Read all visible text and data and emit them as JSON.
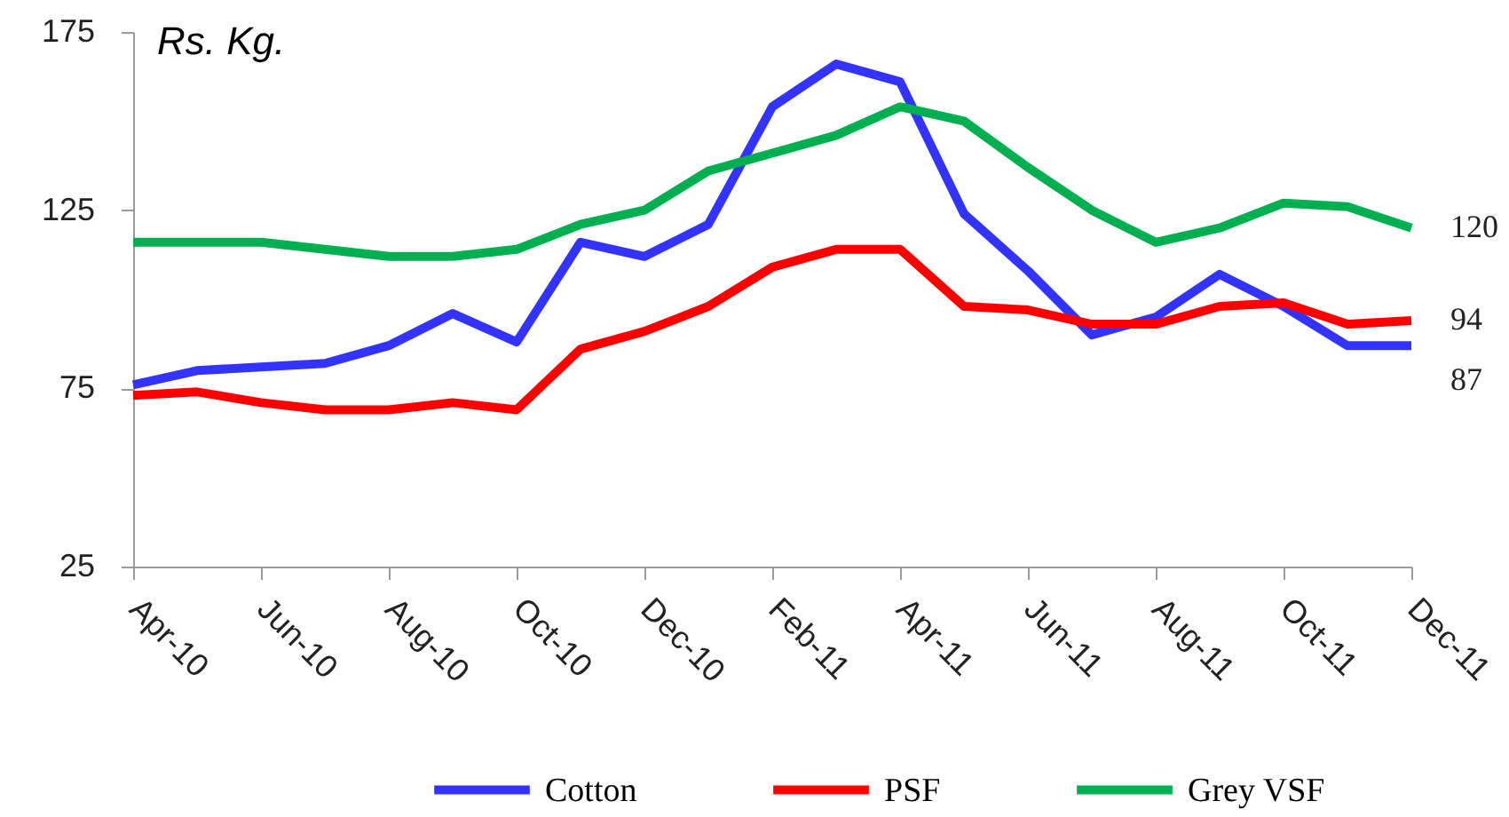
{
  "chart_data": {
    "type": "line",
    "ylabel": "Rs. Kg.",
    "categories": [
      "Apr-10",
      null,
      "Jun-10",
      null,
      "Aug-10",
      null,
      "Oct-10",
      null,
      "Dec-10",
      null,
      "Feb-11",
      null,
      "Apr-11",
      null,
      "Jun-11",
      null,
      "Aug-11",
      null,
      "Oct-11",
      null,
      "Dec-11"
    ],
    "series": [
      {
        "name": "Cotton",
        "color": "#3333ff",
        "values": [
          76,
          80,
          81,
          82,
          87,
          96,
          88,
          116,
          112,
          121,
          154,
          166,
          161,
          124,
          108,
          90,
          95,
          107,
          98,
          87,
          87
        ],
        "value_labels": [
          null,
          null,
          null,
          null,
          null,
          null,
          null,
          null,
          null,
          null,
          null,
          null,
          null,
          null,
          null,
          null,
          null,
          null,
          null,
          null,
          "87"
        ]
      },
      {
        "name": "PSF",
        "color": "#ff0000",
        "values": [
          73,
          74,
          71,
          69,
          69,
          71,
          69,
          86,
          91,
          98,
          109,
          114,
          114,
          98,
          97,
          93,
          93,
          98,
          99,
          93,
          94
        ],
        "value_labels": [
          null,
          null,
          null,
          null,
          null,
          null,
          null,
          null,
          null,
          null,
          null,
          null,
          null,
          null,
          null,
          null,
          null,
          null,
          null,
          null,
          "94"
        ]
      },
      {
        "name": "Grey VSF",
        "color": "#00b050",
        "values": [
          116,
          116,
          116,
          114,
          112,
          112,
          114,
          121,
          125,
          136,
          141,
          146,
          154,
          150,
          137,
          125,
          116,
          120,
          127,
          126,
          120
        ],
        "value_labels": [
          null,
          null,
          null,
          null,
          null,
          null,
          null,
          null,
          null,
          null,
          null,
          null,
          null,
          null,
          null,
          null,
          null,
          null,
          null,
          null,
          "120"
        ]
      }
    ],
    "ylim": [
      25,
      175
    ],
    "yticks": [
      25,
      75,
      125,
      175
    ],
    "legend": "bottom"
  }
}
